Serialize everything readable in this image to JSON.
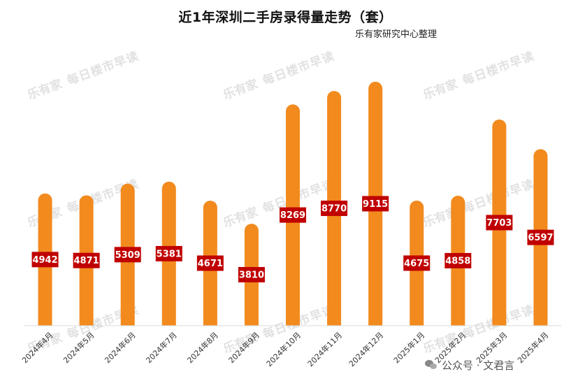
{
  "title": "近1年深圳二手房录得量走势（套）",
  "source_note": "乐有家研究中心整理",
  "watermark": {
    "logo": "乐有家",
    "text": "每日楼市早读"
  },
  "credit": {
    "icon": "wechat-icon",
    "text": "公众号 · 文君言"
  },
  "colors": {
    "bar": "#F28A1E",
    "label_bg": "#C00000",
    "label_text": "#FFFFFF",
    "axis": "#D9D9D9"
  },
  "chart_data": {
    "type": "bar",
    "categories": [
      "2024年4月",
      "2024年5月",
      "2024年6月",
      "2024年7月",
      "2024年8月",
      "2024年9月",
      "2024年10月",
      "2024年11月",
      "2024年12月",
      "2025年1月",
      "2025年2月",
      "2025年3月",
      "2025年4月"
    ],
    "values": [
      4942,
      4871,
      5309,
      5381,
      4671,
      3810,
      8269,
      8770,
      9115,
      4675,
      4858,
      7703,
      6597
    ],
    "data_labels": [
      "4942",
      "4871",
      "5309",
      "5381",
      "4671",
      "3810",
      "8269",
      "8770",
      "9115",
      "4675",
      "4858",
      "7703",
      "6597"
    ],
    "ylim": [
      0,
      9400
    ],
    "grid": false,
    "legend": "none"
  }
}
